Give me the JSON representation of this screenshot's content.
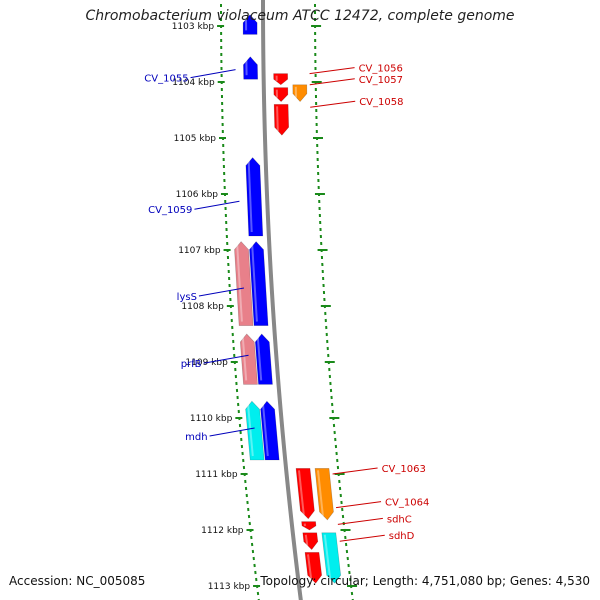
{
  "title": "Chromobacterium violaceum ATCC 12472, complete genome",
  "footer": {
    "accession": "Accession: NC_005085",
    "summary": "Topology: circular; Length: 4,751,080 bp; Genes: 4,530"
  },
  "colors": {
    "backbone": "#888888",
    "ticks": "#1a8a1a",
    "left_label": "#0000bb",
    "right_label": "#cc0000",
    "blue": "#0000ff",
    "red": "#ff0000",
    "orange": "#ff8c00",
    "cyan": "#00eeee",
    "salmon": "#e8808a"
  },
  "kbp_labels": [
    {
      "kbp": 1103,
      "text": "1103 kbp"
    },
    {
      "kbp": 1104,
      "text": "1104 kbp"
    },
    {
      "kbp": 1105,
      "text": "1105 kbp"
    },
    {
      "kbp": 1106,
      "text": "1106 kbp"
    },
    {
      "kbp": 1107,
      "text": "1107 kbp"
    },
    {
      "kbp": 1108,
      "text": "1108 kbp"
    },
    {
      "kbp": 1109,
      "text": "1109 kbp"
    },
    {
      "kbp": 1110,
      "text": "1110 kbp"
    },
    {
      "kbp": 1111,
      "text": "1111 kbp"
    },
    {
      "kbp": 1112,
      "text": "1112 kbp"
    },
    {
      "kbp": 1113,
      "text": "1113 kbp"
    }
  ],
  "genes": [
    {
      "lane": "L1",
      "start": 1102.8,
      "end": 1103.15,
      "strand": "-",
      "color": "blue"
    },
    {
      "lane": "L1",
      "start": 1103.55,
      "end": 1103.95,
      "strand": "-",
      "color": "blue"
    },
    {
      "lane": "R1",
      "start": 1103.85,
      "end": 1104.05,
      "strand": "+",
      "color": "red"
    },
    {
      "lane": "R2",
      "start": 1104.05,
      "end": 1104.35,
      "strand": "+",
      "color": "orange"
    },
    {
      "lane": "R1",
      "start": 1104.1,
      "end": 1104.35,
      "strand": "+",
      "color": "red"
    },
    {
      "lane": "R1",
      "start": 1104.4,
      "end": 1104.95,
      "strand": "+",
      "color": "red"
    },
    {
      "lane": "L1",
      "start": 1105.35,
      "end": 1106.75,
      "strand": "-",
      "color": "blue"
    },
    {
      "lane": "L1",
      "start": 1106.85,
      "end": 1108.35,
      "strand": "-",
      "color": "blue"
    },
    {
      "lane": "L2",
      "start": 1106.85,
      "end": 1108.35,
      "strand": "-",
      "color": "salmon"
    },
    {
      "lane": "L1",
      "start": 1108.5,
      "end": 1109.4,
      "strand": "-",
      "color": "blue"
    },
    {
      "lane": "L2",
      "start": 1108.5,
      "end": 1109.4,
      "strand": "-",
      "color": "salmon"
    },
    {
      "lane": "L1",
      "start": 1109.7,
      "end": 1110.75,
      "strand": "-",
      "color": "blue"
    },
    {
      "lane": "L2",
      "start": 1109.7,
      "end": 1110.75,
      "strand": "-",
      "color": "cyan"
    },
    {
      "lane": "R1",
      "start": 1110.9,
      "end": 1111.8,
      "strand": "+",
      "color": "red"
    },
    {
      "lane": "R2",
      "start": 1110.9,
      "end": 1111.82,
      "strand": "+",
      "color": "orange"
    },
    {
      "lane": "R1",
      "start": 1111.85,
      "end": 1112.0,
      "strand": "+",
      "color": "red"
    },
    {
      "lane": "R1",
      "start": 1112.05,
      "end": 1112.35,
      "strand": "+",
      "color": "red"
    },
    {
      "lane": "R2",
      "start": 1112.05,
      "end": 1112.95,
      "strand": "+",
      "color": "cyan"
    },
    {
      "lane": "R1",
      "start": 1112.4,
      "end": 1112.95,
      "strand": "+",
      "color": "red"
    }
  ],
  "gene_labels": [
    {
      "text": "CV_1055",
      "side": "left",
      "pos": 1103.85
    },
    {
      "text": "CV_1059",
      "side": "left",
      "pos": 1106.2
    },
    {
      "text": "lysS",
      "side": "left",
      "pos": 1107.75
    },
    {
      "text": "prfB",
      "side": "left",
      "pos": 1108.95
    },
    {
      "text": "mdh",
      "side": "left",
      "pos": 1110.25
    },
    {
      "text": "CV_1056",
      "side": "right",
      "pos": 1103.85
    },
    {
      "text": "CV_1057",
      "side": "right",
      "pos": 1104.05
    },
    {
      "text": "CV_1058",
      "side": "right",
      "pos": 1104.45
    },
    {
      "text": "CV_1063",
      "side": "right",
      "pos": 1111.0
    },
    {
      "text": "CV_1064",
      "side": "right",
      "pos": 1111.6
    },
    {
      "text": "sdhC",
      "side": "right",
      "pos": 1111.9
    },
    {
      "text": "sdhD",
      "side": "right",
      "pos": 1112.2
    }
  ]
}
